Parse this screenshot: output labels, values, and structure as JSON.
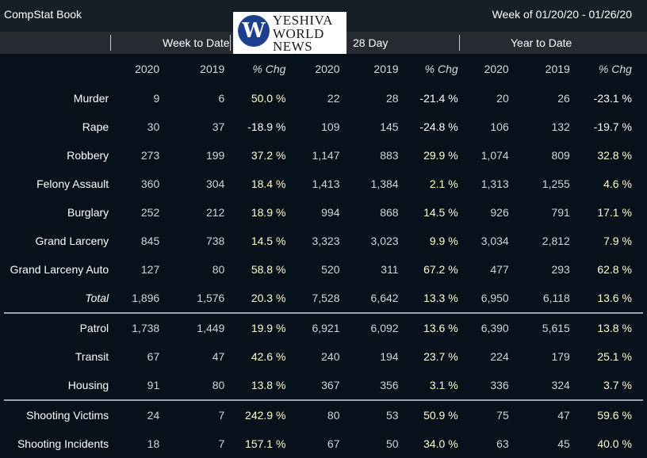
{
  "header": {
    "app_title": "CompStat Book",
    "week_range": "Week of 01/20/20 - 01/26/20"
  },
  "logo": {
    "mark": "W",
    "line1": "YESHIVA",
    "line2": "WORLD",
    "line3": "NEWS"
  },
  "groups": [
    "Week to Date",
    "28 Day",
    "Year to Date"
  ],
  "columns": [
    "2020",
    "2019",
    "% Chg",
    "2020",
    "2019",
    "% Chg",
    "2020",
    "2019",
    "% Chg"
  ],
  "sections": [
    {
      "rows": [
        {
          "label": "Murder",
          "values": [
            "9",
            "6",
            "50.0 %",
            "22",
            "28",
            "-21.4 %",
            "20",
            "26",
            "-23.1 %"
          ]
        },
        {
          "label": "Rape",
          "values": [
            "30",
            "37",
            "-18.9 %",
            "109",
            "145",
            "-24.8 %",
            "106",
            "132",
            "-19.7 %"
          ]
        },
        {
          "label": "Robbery",
          "values": [
            "273",
            "199",
            "37.2 %",
            "1,147",
            "883",
            "29.9 %",
            "1,074",
            "809",
            "32.8 %"
          ]
        },
        {
          "label": "Felony Assault",
          "values": [
            "360",
            "304",
            "18.4 %",
            "1,413",
            "1,384",
            "2.1 %",
            "1,313",
            "1,255",
            "4.6 %"
          ]
        },
        {
          "label": "Burglary",
          "values": [
            "252",
            "212",
            "18.9 %",
            "994",
            "868",
            "14.5 %",
            "926",
            "791",
            "17.1 %"
          ]
        },
        {
          "label": "Grand Larceny",
          "values": [
            "845",
            "738",
            "14.5 %",
            "3,323",
            "3,023",
            "9.9 %",
            "3,034",
            "2,812",
            "7.9 %"
          ]
        },
        {
          "label": "Grand Larceny Auto",
          "values": [
            "127",
            "80",
            "58.8 %",
            "520",
            "311",
            "67.2 %",
            "477",
            "293",
            "62.8 %"
          ]
        },
        {
          "label": "Total",
          "italic": true,
          "values": [
            "1,896",
            "1,576",
            "20.3 %",
            "7,528",
            "6,642",
            "13.3 %",
            "6,950",
            "6,118",
            "13.6 %"
          ]
        }
      ]
    },
    {
      "rows": [
        {
          "label": "Patrol",
          "values": [
            "1,738",
            "1,449",
            "19.9 %",
            "6,921",
            "6,092",
            "13.6 %",
            "6,390",
            "5,615",
            "13.8 %"
          ]
        },
        {
          "label": "Transit",
          "values": [
            "67",
            "47",
            "42.6 %",
            "240",
            "194",
            "23.7 %",
            "224",
            "179",
            "25.1 %"
          ]
        },
        {
          "label": "Housing",
          "values": [
            "91",
            "80",
            "13.8 %",
            "367",
            "356",
            "3.1 %",
            "336",
            "324",
            "3.7 %"
          ]
        }
      ]
    },
    {
      "rows": [
        {
          "label": "Shooting Victims",
          "values": [
            "24",
            "7",
            "242.9 %",
            "80",
            "53",
            "50.9 %",
            "75",
            "47",
            "59.6 %"
          ]
        },
        {
          "label": "Shooting Incidents",
          "values": [
            "18",
            "7",
            "157.1 %",
            "67",
            "50",
            "34.0 %",
            "63",
            "45",
            "40.0 %"
          ]
        }
      ]
    }
  ]
}
